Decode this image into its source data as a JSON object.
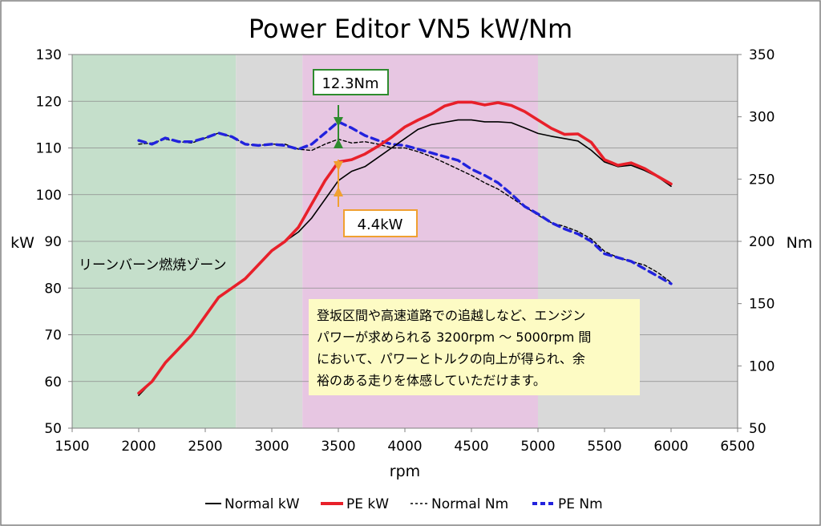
{
  "chart_data": {
    "type": "line",
    "title": "Power Editor VN5 kW/Nm",
    "xlabel": "rpm",
    "ylabel_left": "kW",
    "ylabel_right": "Nm",
    "xlim": [
      1500,
      6500
    ],
    "xticks": [
      1500,
      2000,
      2500,
      3000,
      3500,
      4000,
      4500,
      5000,
      5500,
      6000,
      6500
    ],
    "ylim_left": [
      50,
      130
    ],
    "yticks_left": [
      50,
      60,
      70,
      80,
      90,
      100,
      110,
      120,
      130
    ],
    "ylim_right": [
      50,
      350
    ],
    "yticks_right": [
      50,
      100,
      150,
      200,
      250,
      300,
      350
    ],
    "grid": true,
    "legend_position": "bottom",
    "colors": {
      "normal_kw": "#000000",
      "pe_kw": "#e8202a",
      "normal_nm": "#000000",
      "pe_nm": "#2222dd",
      "lean_zone": "#c5dfcb",
      "mid_zone": "#e7c6e2",
      "plot_bg": "#d9d9d9",
      "annotation_nm": "#2e8b2e",
      "annotation_kw": "#f0a030",
      "note_bg": "#fdfbc4"
    },
    "series": [
      {
        "name": "Normal kW",
        "axis": "left",
        "x": [
          2000,
          2100,
          2200,
          2300,
          2400,
          2500,
          2600,
          2700,
          2800,
          2900,
          3000,
          3100,
          3200,
          3300,
          3400,
          3500,
          3600,
          3700,
          3800,
          3900,
          4000,
          4100,
          4200,
          4300,
          4400,
          4500,
          4600,
          4700,
          4800,
          4900,
          5000,
          5100,
          5200,
          5300,
          5400,
          5500,
          5600,
          5700,
          5800,
          5900,
          6000
        ],
        "values": [
          57,
          60,
          64,
          67,
          70,
          74,
          78,
          80,
          82,
          85,
          88,
          90,
          92,
          95,
          99,
          103,
          105,
          106,
          108,
          110,
          112,
          114,
          115,
          115.5,
          116,
          116,
          115.6,
          115.6,
          115.4,
          114.3,
          113.1,
          112.5,
          112,
          111.5,
          109.5,
          107,
          106,
          106.3,
          105.2,
          103.8,
          101.8
        ]
      },
      {
        "name": "PE kW",
        "axis": "left",
        "x": [
          2000,
          2100,
          2200,
          2300,
          2400,
          2500,
          2600,
          2700,
          2800,
          2900,
          3000,
          3100,
          3200,
          3300,
          3400,
          3500,
          3600,
          3700,
          3800,
          3900,
          4000,
          4100,
          4200,
          4300,
          4400,
          4500,
          4600,
          4700,
          4800,
          4900,
          5000,
          5100,
          5200,
          5300,
          5400,
          5500,
          5600,
          5700,
          5800,
          5900,
          6000
        ],
        "values": [
          57.5,
          60,
          64,
          67,
          70,
          74,
          78,
          80,
          82,
          85,
          88,
          90,
          93,
          98,
          103,
          107,
          107.5,
          108.7,
          110.4,
          112.3,
          114.5,
          116,
          117.3,
          119,
          119.8,
          119.8,
          119.2,
          119.7,
          119.1,
          117.8,
          116,
          114.2,
          112.9,
          113,
          111.2,
          107.5,
          106.3,
          106.8,
          105.6,
          103.9,
          102.3
        ]
      },
      {
        "name": "Normal Nm",
        "axis": "right",
        "x": [
          2000,
          2100,
          2200,
          2300,
          2400,
          2500,
          2600,
          2700,
          2800,
          2900,
          3000,
          3100,
          3200,
          3300,
          3400,
          3500,
          3600,
          3700,
          3800,
          3900,
          4000,
          4100,
          4200,
          4300,
          4400,
          4500,
          4600,
          4700,
          4800,
          4900,
          5000,
          5100,
          5200,
          5300,
          5400,
          5500,
          5600,
          5700,
          5800,
          5900,
          6000
        ],
        "values": [
          278,
          279,
          282,
          280,
          279,
          283,
          287,
          284,
          278,
          277,
          278,
          278,
          274,
          273,
          278,
          282,
          279,
          280,
          278,
          275,
          275,
          272,
          268,
          263,
          258,
          253,
          247,
          242,
          235,
          228,
          221,
          215,
          212,
          208,
          202,
          192,
          187,
          184,
          181,
          175,
          167
        ]
      },
      {
        "name": "PE Nm",
        "axis": "right",
        "x": [
          2000,
          2100,
          2200,
          2300,
          2400,
          2500,
          2600,
          2700,
          2800,
          2900,
          3000,
          3100,
          3200,
          3300,
          3400,
          3500,
          3600,
          3700,
          3800,
          3900,
          4000,
          4100,
          4200,
          4300,
          4400,
          4500,
          4600,
          4700,
          4800,
          4900,
          5000,
          5100,
          5200,
          5300,
          5400,
          5500,
          5600,
          5700,
          5800,
          5900,
          6000
        ],
        "values": [
          281,
          278,
          283,
          280,
          280,
          283,
          287,
          284,
          278,
          277,
          278,
          277,
          274,
          278,
          287,
          296,
          291,
          285,
          281,
          278,
          277,
          274,
          271,
          268,
          265,
          258,
          253,
          247,
          238,
          228,
          222,
          215,
          210,
          206,
          200,
          190,
          187,
          184,
          178,
          172,
          166
        ]
      }
    ],
    "zones": [
      {
        "label": "リーンバーン燃焼ゾーン",
        "x_range": [
          1500,
          2730
        ],
        "color": "#c5dfcb"
      },
      {
        "label": "",
        "x_range": [
          2730,
          3230
        ],
        "color": "#d9d9d9"
      },
      {
        "label": "",
        "x_range": [
          3230,
          5000
        ],
        "color": "#e7c6e2"
      },
      {
        "label": "",
        "x_range": [
          5000,
          6500
        ],
        "color": "#d9d9d9"
      }
    ],
    "annotations": {
      "nm_gain": "12.3Nm",
      "kw_gain": "4.4kW",
      "note_lines": [
        "登坂区間や高速道路での追越しなど、エンジン",
        "パワーが求められる 3200rpm ～ 5000rpm 間",
        "において、パワーとトルクの向上が得られ、余",
        "裕のある走りを体感していただけます。"
      ]
    }
  }
}
